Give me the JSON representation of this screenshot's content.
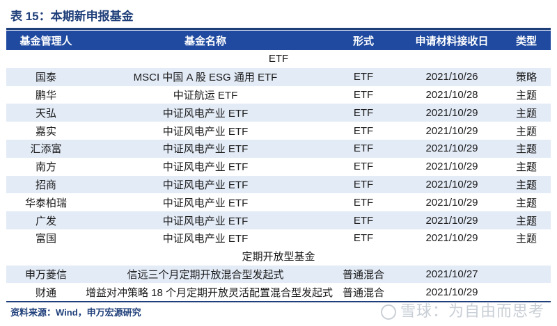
{
  "title": "表 15：本期新申报基金",
  "source": "资料来源：Wind，申万宏源研究",
  "watermark": "雪球：为自由而思考",
  "chart_data": {
    "type": "table",
    "columns": [
      "基金管理人",
      "基金名称",
      "形式",
      "申请材料接收日",
      "类型"
    ],
    "sections": [
      {
        "label": "ETF",
        "rows": [
          [
            "国泰",
            "MSCI 中国 A 股 ESG 通用 ETF",
            "ETF",
            "2021/10/26",
            "策略"
          ],
          [
            "鹏华",
            "中证航运 ETF",
            "ETF",
            "2021/10/28",
            "主题"
          ],
          [
            "天弘",
            "中证风电产业 ETF",
            "ETF",
            "2021/10/29",
            "主题"
          ],
          [
            "嘉实",
            "中证风电产业 ETF",
            "ETF",
            "2021/10/29",
            "主题"
          ],
          [
            "汇添富",
            "中证风电产业 ETF",
            "ETF",
            "2021/10/29",
            "主题"
          ],
          [
            "南方",
            "中证风电产业 ETF",
            "ETF",
            "2021/10/29",
            "主题"
          ],
          [
            "招商",
            "中证风电产业 ETF",
            "ETF",
            "2021/10/29",
            "主题"
          ],
          [
            "华泰柏瑞",
            "中证风电产业 ETF",
            "ETF",
            "2021/10/29",
            "主题"
          ],
          [
            "广发",
            "中证风电产业 ETF",
            "ETF",
            "2021/10/29",
            "主题"
          ],
          [
            "富国",
            "中证风电产业 ETF",
            "ETF",
            "2021/10/29",
            "主题"
          ]
        ]
      },
      {
        "label": "定期开放型基金",
        "rows": [
          [
            "申万菱信",
            "信远三个月定期开放混合型发起式",
            "普通混合",
            "2021/10/27",
            ""
          ],
          [
            "财通",
            "增益对冲策略 18 个月定期开放灵活配置混合型发起式",
            "普通混合",
            "2021/10/29",
            ""
          ]
        ]
      }
    ]
  }
}
